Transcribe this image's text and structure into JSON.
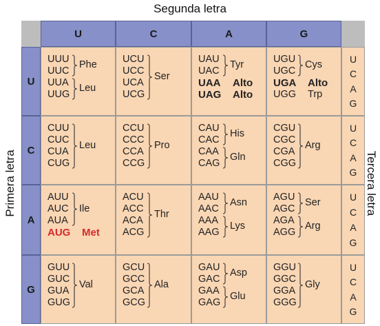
{
  "titles": {
    "second": "Segunda letra",
    "first": "Primera letra",
    "third": "Tercera letra"
  },
  "second_letters": [
    "U",
    "C",
    "A",
    "G"
  ],
  "first_letters": [
    "U",
    "C",
    "A",
    "G"
  ],
  "third_letters": [
    "U",
    "C",
    "A",
    "G"
  ],
  "cells": [
    [
      {
        "groups": [
          {
            "codons": [
              "UUU",
              "UUC"
            ],
            "aa": "Phe"
          },
          {
            "codons": [
              "UUA",
              "UUG"
            ],
            "aa": "Leu"
          }
        ]
      },
      {
        "groups": [
          {
            "codons": [
              "UCU",
              "UCC",
              "UCA",
              "UCG"
            ],
            "aa": "Ser"
          }
        ]
      },
      {
        "groups": [
          {
            "codons": [
              "UAU",
              "UAC"
            ],
            "aa": "Tyr"
          },
          {
            "codons": [
              "UAA"
            ],
            "aa": "Alto",
            "style": "bold"
          },
          {
            "codons": [
              "UAG"
            ],
            "aa": "Alto",
            "style": "bold"
          }
        ]
      },
      {
        "groups": [
          {
            "codons": [
              "UGU",
              "UGC"
            ],
            "aa": "Cys"
          },
          {
            "codons": [
              "UGA"
            ],
            "aa": "Alto",
            "style": "bold"
          },
          {
            "codons": [
              "UGG"
            ],
            "aa": "Trp"
          }
        ]
      }
    ],
    [
      {
        "groups": [
          {
            "codons": [
              "CUU",
              "CUC",
              "CUA",
              "CUG"
            ],
            "aa": "Leu"
          }
        ]
      },
      {
        "groups": [
          {
            "codons": [
              "CCU",
              "CCC",
              "CCA",
              "CCG"
            ],
            "aa": "Pro"
          }
        ]
      },
      {
        "groups": [
          {
            "codons": [
              "CAU",
              "CAC"
            ],
            "aa": "His"
          },
          {
            "codons": [
              "CAA",
              "CAG"
            ],
            "aa": "Gln"
          }
        ]
      },
      {
        "groups": [
          {
            "codons": [
              "CGU",
              "CGC",
              "CGA",
              "CGG"
            ],
            "aa": "Arg"
          }
        ]
      }
    ],
    [
      {
        "groups": [
          {
            "codons": [
              "AUU",
              "AUC",
              "AUA"
            ],
            "aa": "Ile"
          },
          {
            "codons": [
              "AUG"
            ],
            "aa": "Met",
            "style": "start"
          }
        ]
      },
      {
        "groups": [
          {
            "codons": [
              "ACU",
              "ACC",
              "ACA",
              "ACG"
            ],
            "aa": "Thr"
          }
        ]
      },
      {
        "groups": [
          {
            "codons": [
              "AAU",
              "AAC"
            ],
            "aa": "Asn"
          },
          {
            "codons": [
              "AAA",
              "AAG"
            ],
            "aa": "Lys"
          }
        ]
      },
      {
        "groups": [
          {
            "codons": [
              "AGU",
              "AGC"
            ],
            "aa": "Ser"
          },
          {
            "codons": [
              "AGA",
              "AGG"
            ],
            "aa": "Arg"
          }
        ]
      }
    ],
    [
      {
        "groups": [
          {
            "codons": [
              "GUU",
              "GUC",
              "GUA",
              "GUG"
            ],
            "aa": "Val"
          }
        ]
      },
      {
        "groups": [
          {
            "codons": [
              "GCU",
              "GCC",
              "GCA",
              "GCG"
            ],
            "aa": "Ala"
          }
        ]
      },
      {
        "groups": [
          {
            "codons": [
              "GAU",
              "GAC"
            ],
            "aa": "Asp"
          },
          {
            "codons": [
              "GAA",
              "GAG"
            ],
            "aa": "Glu"
          }
        ]
      },
      {
        "groups": [
          {
            "codons": [
              "GGU",
              "GGC",
              "GGA",
              "GGG"
            ],
            "aa": "Gly"
          }
        ]
      }
    ]
  ]
}
